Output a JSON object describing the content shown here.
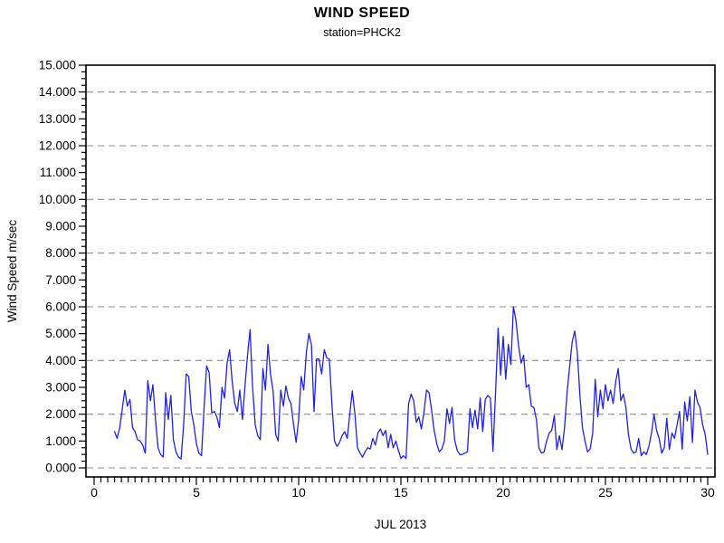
{
  "chart_data": {
    "type": "line",
    "title": "WIND SPEED",
    "subtitle": "station=PHCK2",
    "xlabel": "JUL 2013",
    "ylabel": "Wind Speed m/sec",
    "xlim": [
      0,
      30
    ],
    "ylim": [
      0,
      15
    ],
    "grid": "dashed horizontal at even values",
    "grid_values": [
      0,
      2,
      4,
      6,
      8,
      10,
      12,
      14
    ],
    "legend": "none",
    "line_color": "#2222dd",
    "grid_color": "#8f8f8f",
    "frame_color": "#000000",
    "x_ticks": [
      {
        "v": 0,
        "label": "0"
      },
      {
        "v": 5,
        "label": "5"
      },
      {
        "v": 10,
        "label": "10"
      },
      {
        "v": 15,
        "label": "15"
      },
      {
        "v": 20,
        "label": "20"
      },
      {
        "v": 25,
        "label": "25"
      },
      {
        "v": 30,
        "label": "30"
      }
    ],
    "x_minor_per_day": 3,
    "y_ticks": [
      {
        "v": 0,
        "label": "0.000"
      },
      {
        "v": 1,
        "label": "1.000"
      },
      {
        "v": 2,
        "label": "2.000"
      },
      {
        "v": 3,
        "label": "3.000"
      },
      {
        "v": 4,
        "label": "4.000"
      },
      {
        "v": 5,
        "label": "5.000"
      },
      {
        "v": 6,
        "label": "6.000"
      },
      {
        "v": 7,
        "label": "7.000"
      },
      {
        "v": 8,
        "label": "8.000"
      },
      {
        "v": 9,
        "label": "9.000"
      },
      {
        "v": 10,
        "label": "10.000"
      },
      {
        "v": 11,
        "label": "11.000"
      },
      {
        "v": 12,
        "label": "12.000"
      },
      {
        "v": 13,
        "label": "13.000"
      },
      {
        "v": 14,
        "label": "14.000"
      },
      {
        "v": 15,
        "label": "15.000"
      }
    ],
    "y_minor_per_unit": 4,
    "series": [
      {
        "name": "wind-speed",
        "x_start": 1.0,
        "x_step": 0.125,
        "values": [
          1.35,
          1.1,
          1.5,
          2.2,
          2.9,
          2.3,
          2.55,
          1.5,
          1.35,
          1.05,
          1.0,
          0.85,
          0.55,
          3.25,
          2.5,
          3.1,
          1.8,
          0.75,
          0.5,
          0.4,
          2.8,
          1.8,
          2.7,
          1.05,
          0.6,
          0.4,
          0.33,
          1.6,
          3.5,
          3.4,
          2.1,
          1.6,
          0.9,
          0.55,
          0.45,
          2.25,
          3.8,
          3.55,
          2.05,
          2.1,
          1.9,
          1.5,
          3.0,
          2.6,
          3.9,
          4.4,
          3.2,
          2.4,
          2.1,
          2.9,
          1.8,
          3.05,
          4.2,
          5.15,
          3.0,
          1.6,
          1.2,
          1.05,
          3.7,
          2.9,
          4.6,
          3.5,
          2.85,
          1.25,
          1.0,
          2.9,
          2.3,
          3.05,
          2.6,
          2.4,
          1.6,
          0.95,
          1.8,
          3.4,
          2.9,
          4.3,
          5.0,
          4.6,
          2.1,
          4.05,
          4.05,
          3.5,
          4.4,
          4.1,
          4.05,
          2.4,
          1.0,
          0.8,
          0.95,
          1.2,
          1.35,
          1.1,
          2.0,
          2.87,
          2.0,
          0.75,
          0.55,
          0.4,
          0.6,
          0.75,
          0.7,
          1.1,
          0.85,
          1.3,
          1.45,
          1.2,
          1.4,
          0.75,
          1.25,
          0.75,
          1.0,
          0.65,
          0.35,
          0.45,
          0.35,
          2.4,
          2.75,
          2.5,
          1.7,
          1.9,
          1.45,
          2.05,
          2.9,
          2.8,
          2.15,
          1.4,
          0.9,
          0.6,
          0.7,
          1.0,
          2.2,
          1.65,
          2.25,
          1.05,
          0.65,
          0.5,
          0.5,
          0.55,
          0.6,
          2.2,
          1.5,
          2.15,
          1.45,
          2.6,
          1.35,
          2.55,
          2.7,
          2.6,
          0.62,
          2.75,
          5.2,
          3.45,
          4.9,
          3.3,
          4.6,
          3.85,
          6.0,
          5.5,
          4.55,
          3.9,
          4.2,
          3.0,
          3.1,
          2.3,
          2.25,
          1.8,
          0.74,
          0.55,
          0.6,
          1.0,
          1.3,
          1.4,
          1.95,
          0.68,
          1.2,
          0.68,
          1.5,
          2.8,
          3.8,
          4.7,
          5.1,
          4.3,
          2.7,
          1.5,
          1.0,
          0.6,
          0.7,
          1.3,
          3.3,
          1.9,
          2.9,
          2.2,
          3.1,
          2.5,
          2.9,
          2.4,
          3.2,
          3.7,
          2.5,
          2.75,
          2.25,
          1.25,
          0.7,
          0.55,
          0.6,
          1.1,
          0.45,
          0.6,
          0.5,
          0.8,
          1.3,
          2.0,
          1.4,
          1.1,
          0.55,
          0.75,
          1.85,
          0.68,
          1.3,
          1.1,
          1.6,
          2.1,
          0.7,
          2.45,
          1.75,
          2.65,
          0.95,
          2.9,
          2.45,
          2.25,
          1.6,
          1.25,
          0.5
        ]
      }
    ]
  }
}
